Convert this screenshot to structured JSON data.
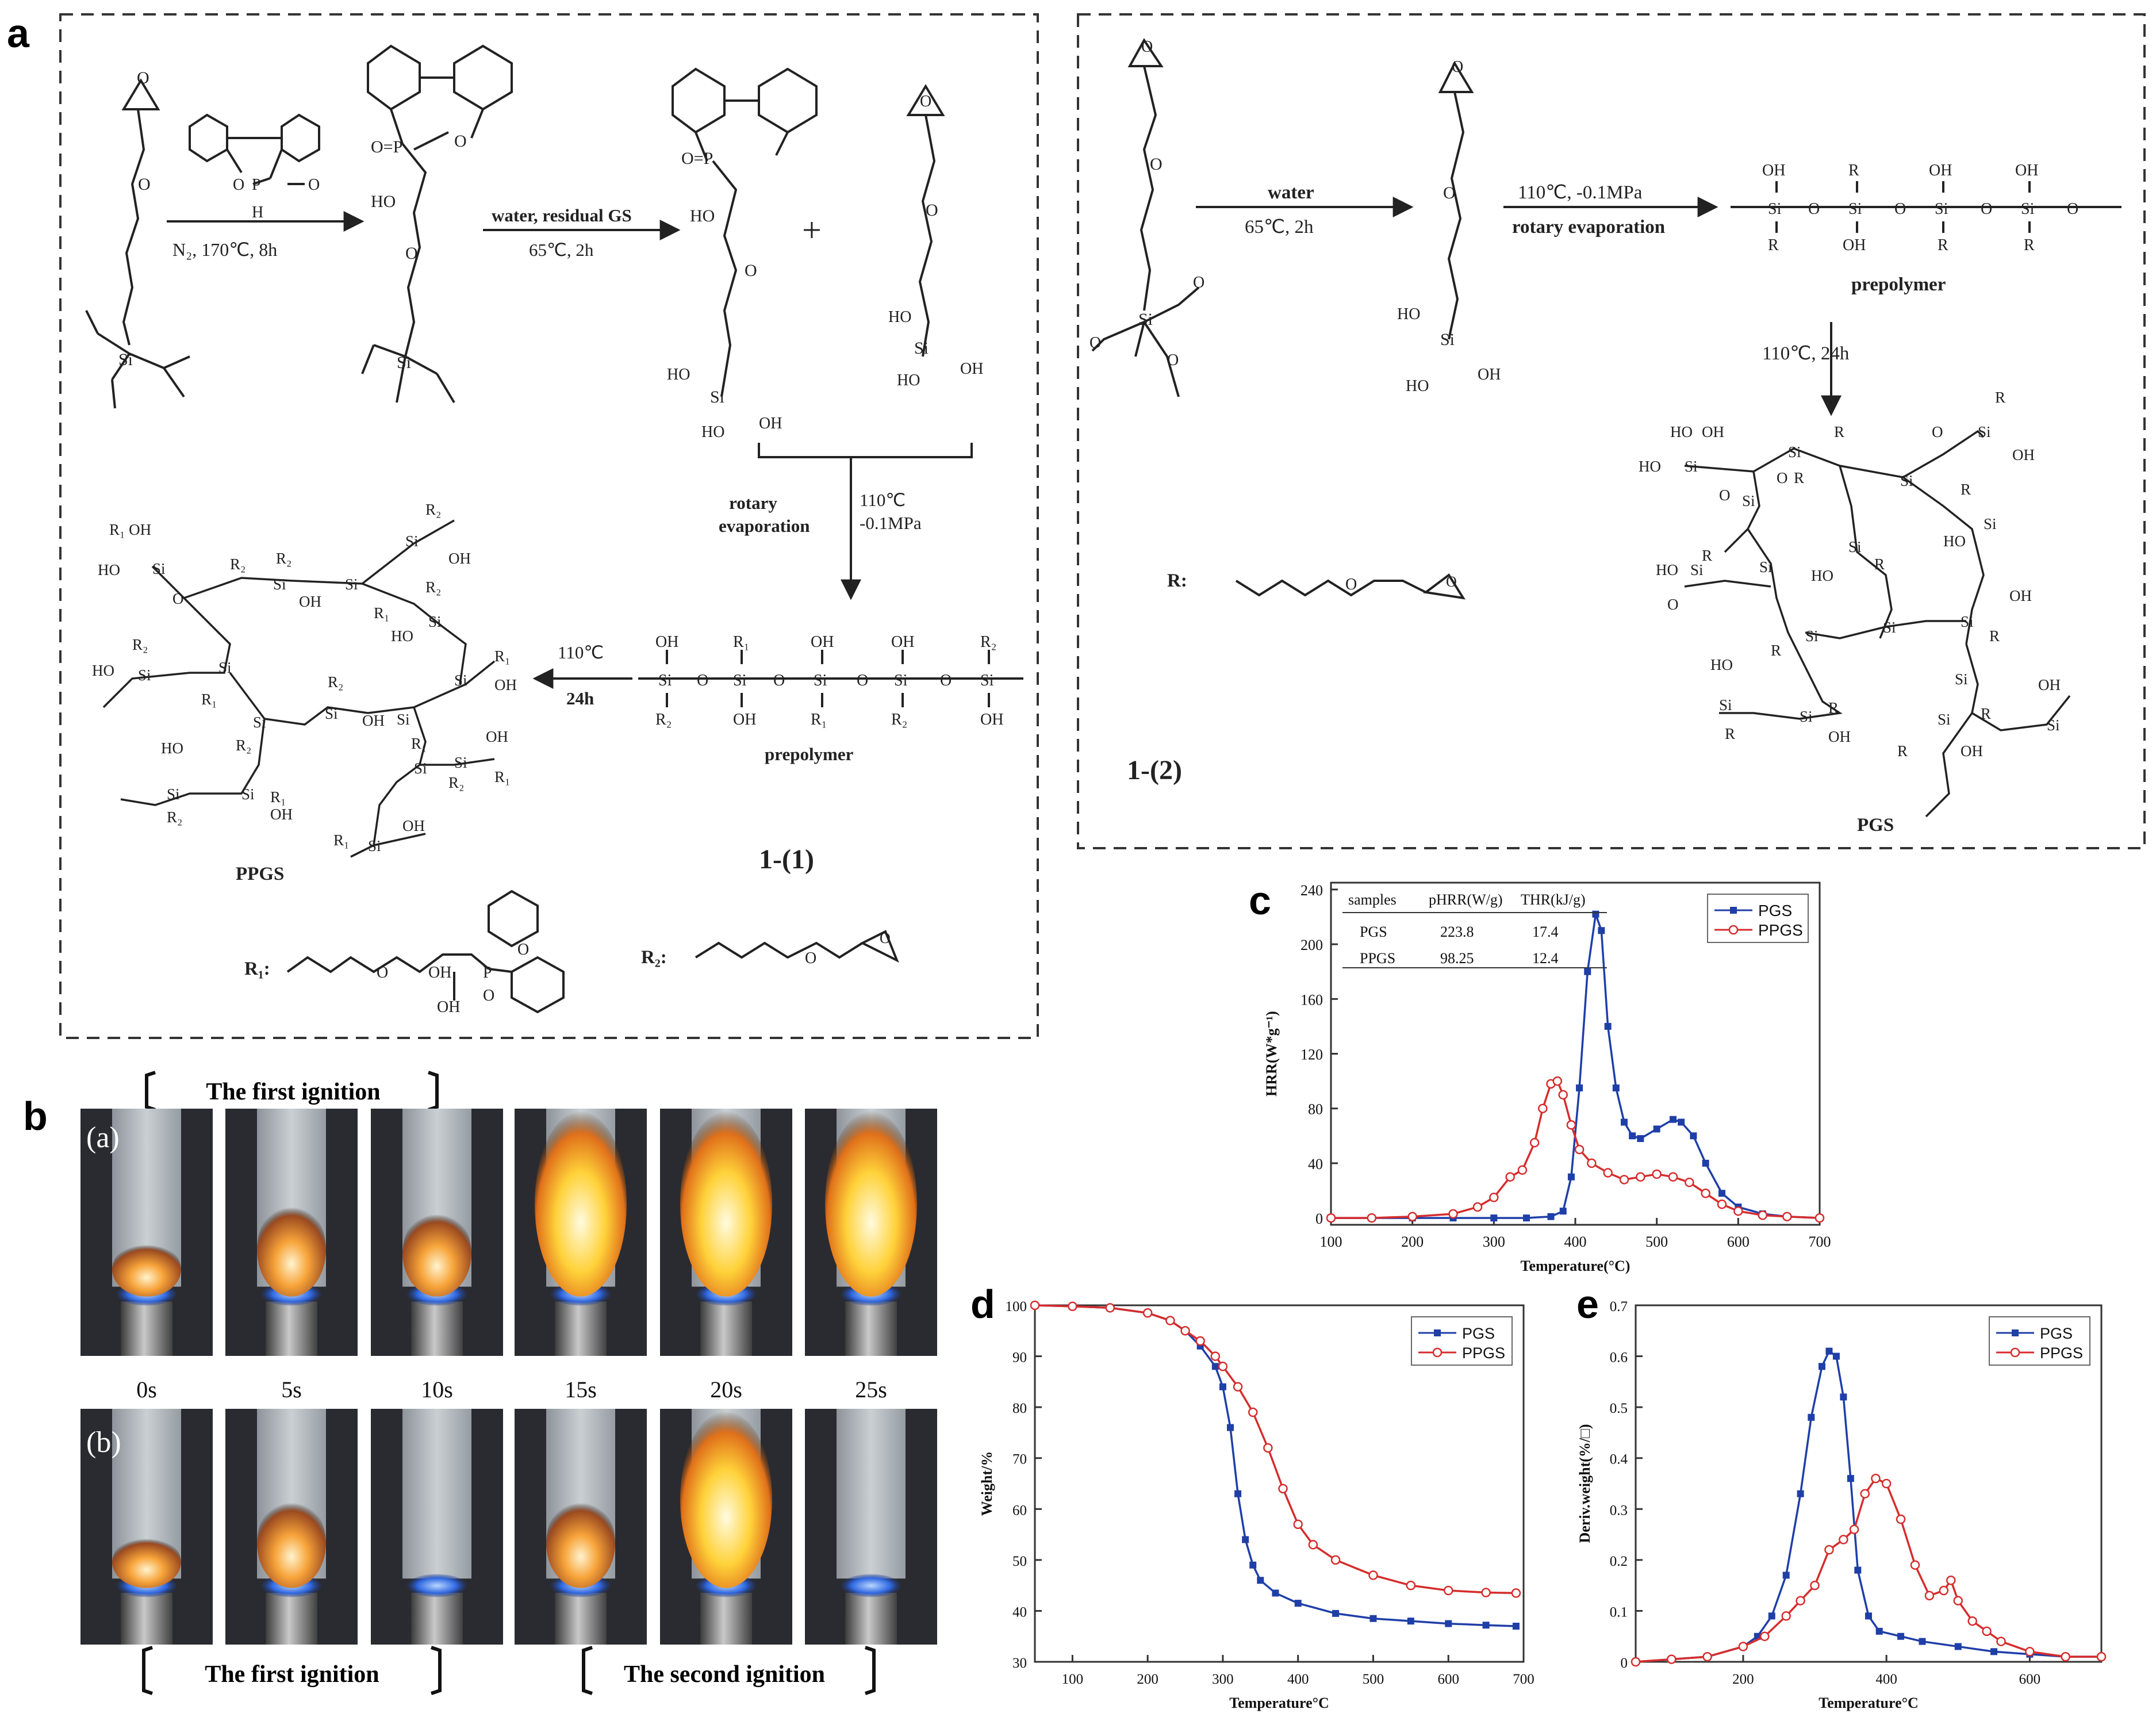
{
  "panel_letters": {
    "a": "a",
    "b": "b",
    "c": "c",
    "d": "d",
    "e": "e"
  },
  "scheme_left": {
    "reagent_dopo_label": "H",
    "cond1": "N₂, 170℃, 8h",
    "step2_top": "water, residual GS",
    "step2_bottom": "65℃, 2h",
    "plus": "+",
    "rotary": "rotary",
    "evaporation": "evaporation",
    "cond3_top": "110℃",
    "cond3_bottom": "-0.1MPa",
    "cond4_top": "110℃",
    "cond4_bottom": "24h",
    "prepolymer": "prepolymer",
    "product": "PPGS",
    "tag": "1-(1)",
    "r1_label": "R₁:",
    "r2_label": "R₂:"
  },
  "scheme_right": {
    "water": "water",
    "cond1": "65℃, 2h",
    "cond2_top": "110℃, -0.1MPa",
    "cond2_bottom": "rotary evaporation",
    "prepolymer": "prepolymer",
    "cond3": "110℃, 24h",
    "r_label": "R:",
    "tag": "1-(2)",
    "product": "PGS"
  },
  "photos": {
    "row_a_label": "(a)",
    "row_b_label": "(b)",
    "first_ignition_top": "The first ignition",
    "first_ignition_bottom": "The first ignition",
    "second_ignition": "The second ignition",
    "times": [
      "0s",
      "5s",
      "10s",
      "15s",
      "20s",
      "25s"
    ]
  },
  "chart_data": [
    {
      "type": "line",
      "panel": "c",
      "xlabel": "Temperature(°C)",
      "ylabel": "HRR(W*g⁻¹)",
      "xlim": [
        100,
        700
      ],
      "ylim": [
        -5,
        245
      ],
      "xticks": [
        100,
        200,
        300,
        400,
        500,
        600,
        700
      ],
      "yticks": [
        0,
        40,
        80,
        120,
        160,
        200,
        240
      ],
      "legend_position": "top-right",
      "table": {
        "headers": [
          "samples",
          "pHRR(W/g)",
          "THR(kJ/g)"
        ],
        "rows": [
          [
            "PGS",
            "223.8",
            "17.4"
          ],
          [
            "PPGS",
            "98.25",
            "12.4"
          ]
        ]
      },
      "series": [
        {
          "name": "PGS",
          "color": "#1f3fa8",
          "marker": "square",
          "x": [
            100,
            150,
            200,
            250,
            300,
            340,
            370,
            385,
            395,
            405,
            415,
            425,
            432,
            440,
            450,
            460,
            470,
            480,
            500,
            520,
            530,
            545,
            560,
            580,
            600,
            630,
            660,
            700
          ],
          "y": [
            0,
            0,
            0,
            0,
            0,
            0,
            1,
            5,
            30,
            95,
            180,
            222,
            210,
            140,
            95,
            70,
            60,
            58,
            65,
            72,
            70,
            60,
            40,
            18,
            8,
            3,
            1,
            0
          ]
        },
        {
          "name": "PPGS",
          "color": "#d62c2c",
          "marker": "circle",
          "x": [
            100,
            150,
            200,
            250,
            280,
            300,
            320,
            335,
            350,
            360,
            370,
            378,
            385,
            395,
            405,
            420,
            440,
            460,
            480,
            500,
            520,
            540,
            560,
            580,
            600,
            630,
            660,
            700
          ],
          "y": [
            0,
            0,
            1,
            3,
            8,
            15,
            30,
            35,
            55,
            80,
            98,
            100,
            90,
            68,
            50,
            40,
            33,
            28,
            30,
            32,
            30,
            26,
            18,
            10,
            5,
            2,
            1,
            0
          ]
        }
      ]
    },
    {
      "type": "line",
      "panel": "d",
      "xlabel": "Temperature°C",
      "ylabel": "Weight/%",
      "xlim": [
        50,
        700
      ],
      "ylim": [
        30,
        100
      ],
      "xticks": [
        100,
        200,
        300,
        400,
        500,
        600,
        700
      ],
      "yticks": [
        30,
        40,
        50,
        60,
        70,
        80,
        90,
        100
      ],
      "legend_position": "top-right",
      "series": [
        {
          "name": "PGS",
          "color": "#1f3fa8",
          "marker": "square",
          "x": [
            50,
            100,
            150,
            200,
            230,
            250,
            270,
            290,
            300,
            310,
            320,
            330,
            340,
            350,
            370,
            400,
            450,
            500,
            550,
            600,
            650,
            690
          ],
          "y": [
            100,
            99.8,
            99.5,
            98.5,
            97,
            95,
            92,
            88,
            84,
            76,
            63,
            54,
            49,
            46,
            43.5,
            41.5,
            39.5,
            38.5,
            38,
            37.5,
            37.2,
            37
          ]
        },
        {
          "name": "PPGS",
          "color": "#d62c2c",
          "marker": "circle",
          "x": [
            50,
            100,
            150,
            200,
            230,
            250,
            270,
            290,
            300,
            320,
            340,
            360,
            380,
            400,
            420,
            450,
            500,
            550,
            600,
            650,
            690
          ],
          "y": [
            100,
            99.8,
            99.5,
            98.5,
            97,
            95,
            93,
            90,
            88,
            84,
            79,
            72,
            64,
            57,
            53,
            50,
            47,
            45,
            44,
            43.6,
            43.5
          ]
        }
      ]
    },
    {
      "type": "line",
      "panel": "e",
      "xlabel": "Temperature°C",
      "ylabel": "Deriv.weight(%/□)",
      "xlim": [
        50,
        700
      ],
      "ylim": [
        0,
        0.7
      ],
      "xticks": [
        200,
        400,
        600
      ],
      "yticks": [
        0,
        0.1,
        0.2,
        0.3,
        0.4,
        0.5,
        0.6,
        0.7
      ],
      "legend_position": "top-right",
      "series": [
        {
          "name": "PGS",
          "color": "#1f3fa8",
          "marker": "square",
          "x": [
            50,
            100,
            150,
            200,
            220,
            240,
            260,
            280,
            295,
            310,
            320,
            330,
            340,
            350,
            360,
            375,
            390,
            420,
            450,
            500,
            550,
            600,
            650,
            700
          ],
          "y": [
            0,
            0.005,
            0.01,
            0.03,
            0.05,
            0.09,
            0.17,
            0.33,
            0.48,
            0.58,
            0.61,
            0.6,
            0.52,
            0.36,
            0.18,
            0.09,
            0.06,
            0.05,
            0.04,
            0.03,
            0.02,
            0.015,
            0.01,
            0.01
          ]
        },
        {
          "name": "PPGS",
          "color": "#d62c2c",
          "marker": "circle",
          "x": [
            50,
            100,
            150,
            200,
            230,
            260,
            280,
            300,
            320,
            340,
            355,
            370,
            385,
            400,
            420,
            440,
            460,
            480,
            490,
            500,
            520,
            540,
            560,
            600,
            650,
            700
          ],
          "y": [
            0,
            0.005,
            0.01,
            0.03,
            0.05,
            0.09,
            0.12,
            0.15,
            0.22,
            0.24,
            0.26,
            0.33,
            0.36,
            0.35,
            0.28,
            0.19,
            0.13,
            0.14,
            0.16,
            0.12,
            0.08,
            0.06,
            0.04,
            0.02,
            0.01,
            0.01
          ]
        }
      ]
    }
  ]
}
